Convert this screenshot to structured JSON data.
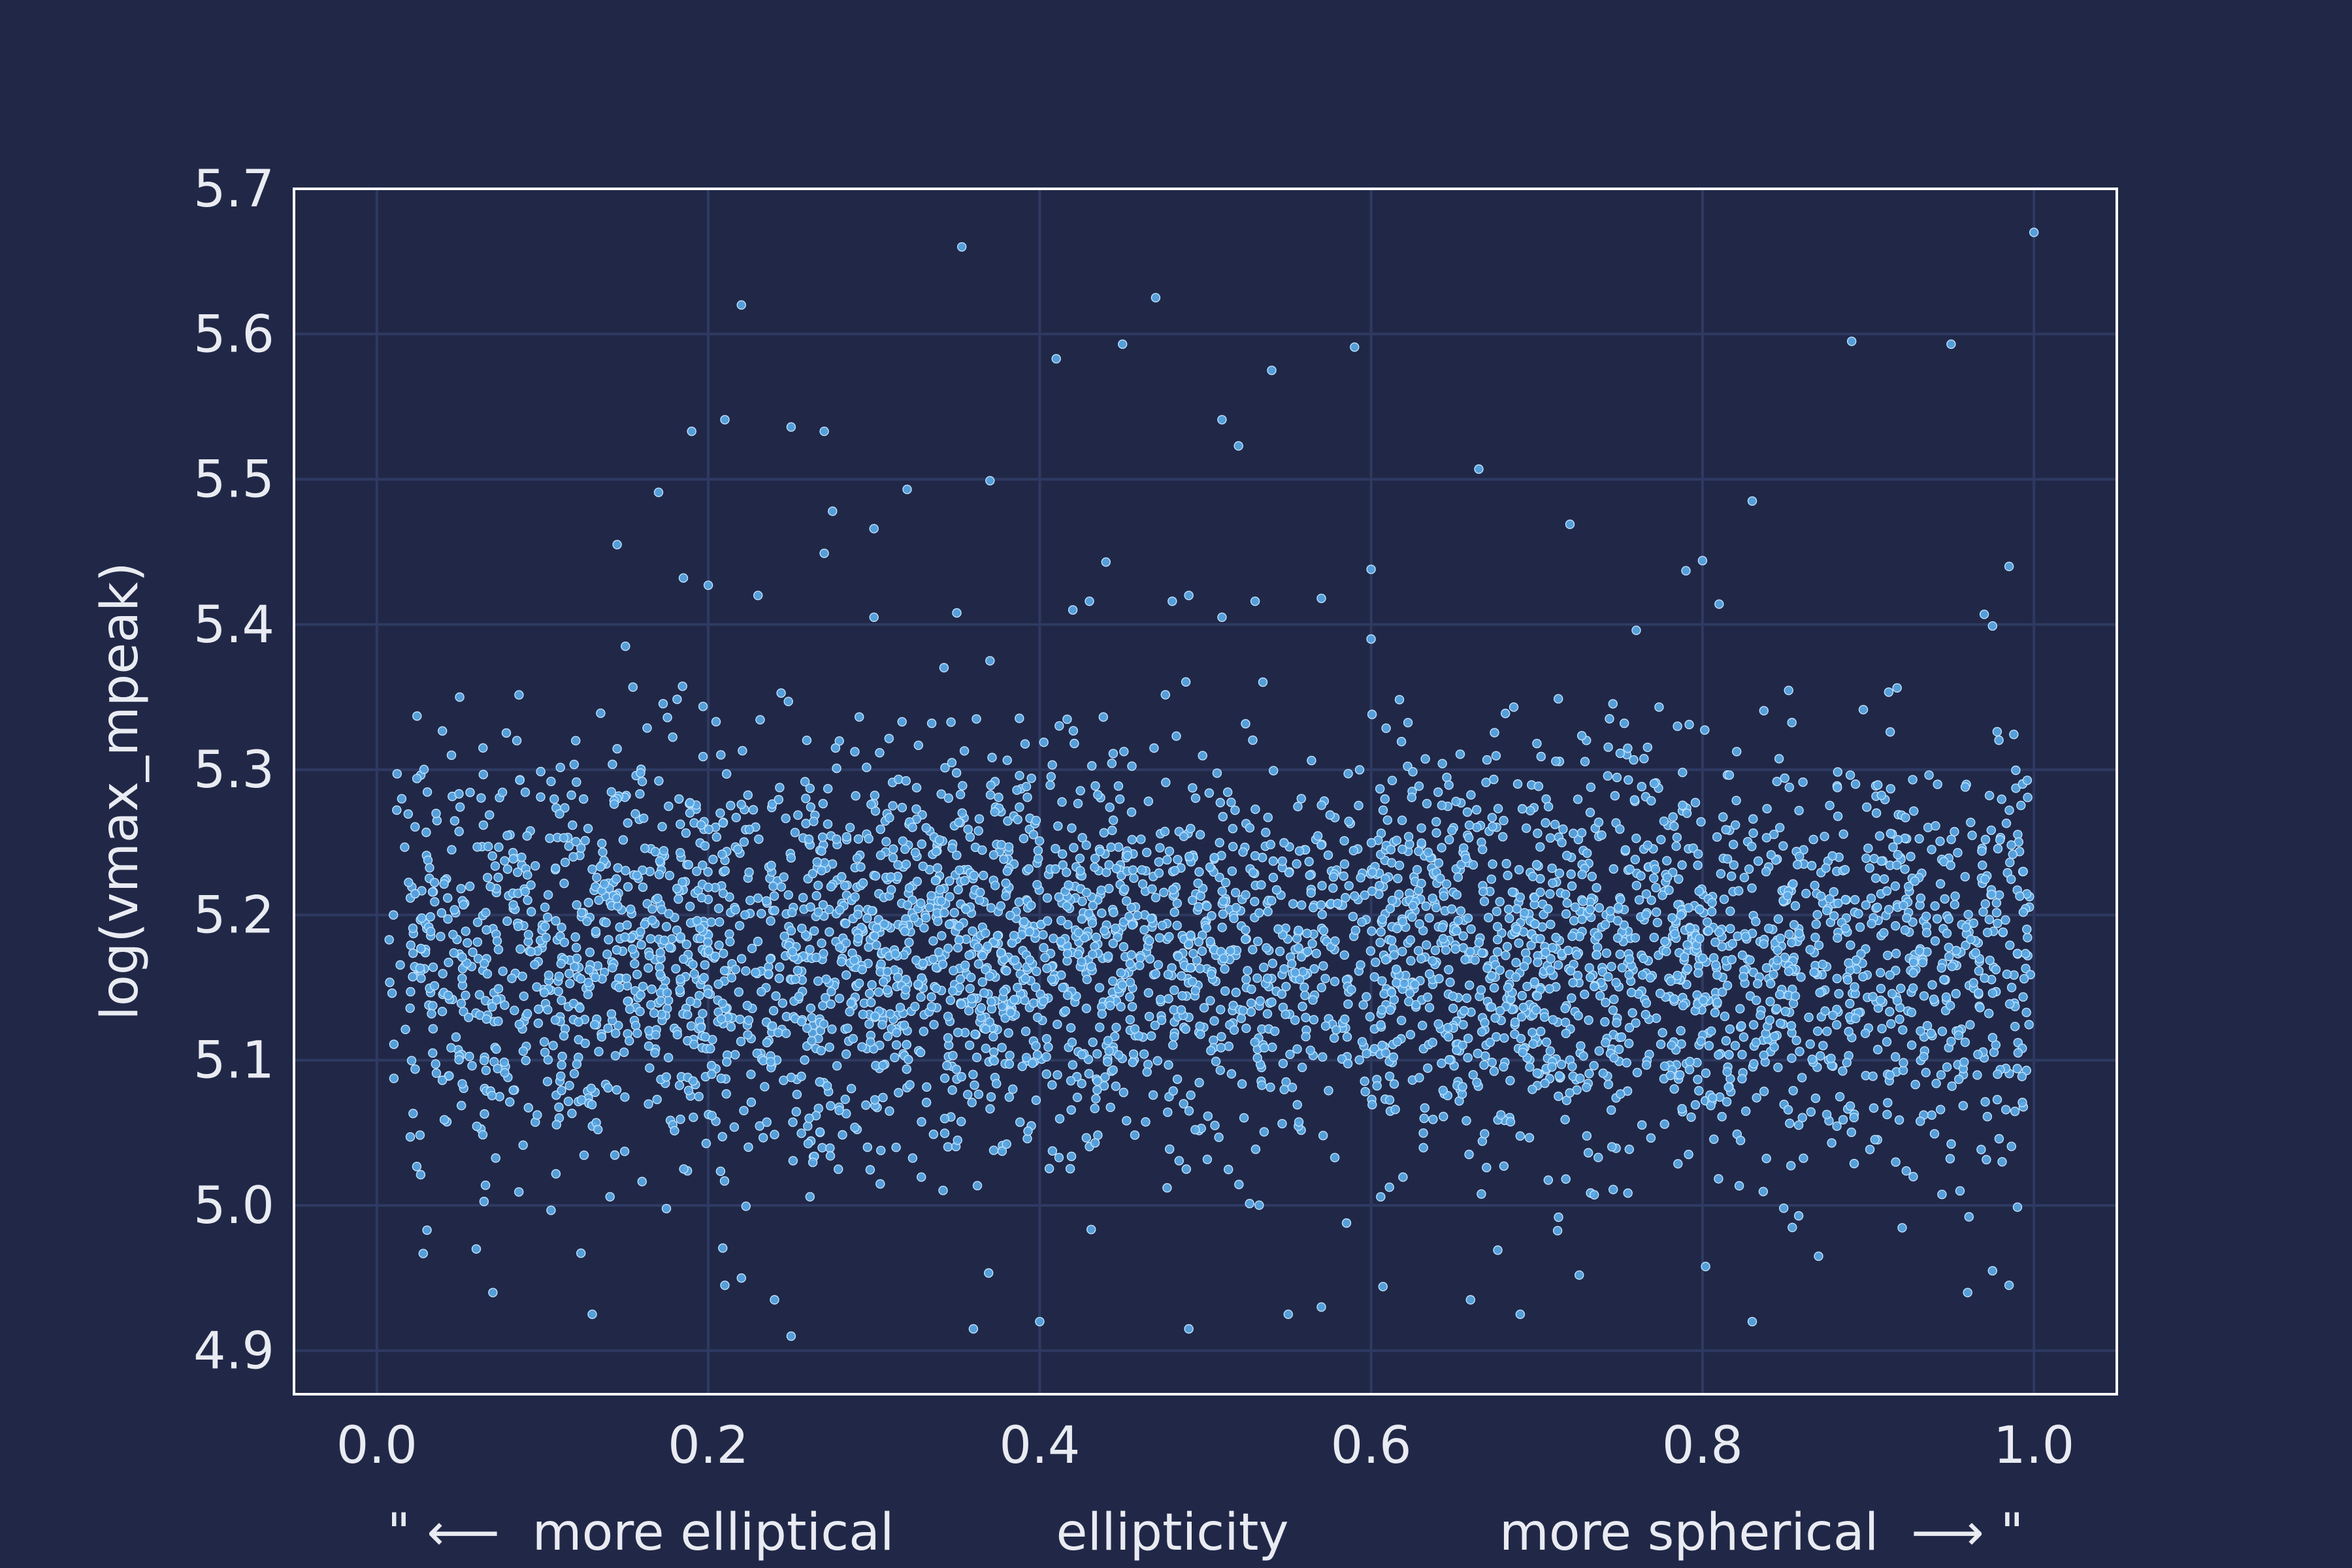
{
  "colors": {
    "background": "#212847",
    "plot_background": "#212847",
    "grid": "#2e3a62",
    "frame": "#ffffff",
    "point_fill": "#5aa8e6",
    "point_edge": "#bfe3ff",
    "text": "#e9ebf2"
  },
  "chart_data": {
    "type": "scatter",
    "title": "",
    "xlabel": "\" ⟵  more elliptical          ellipticity             more spherical  ⟶ \"",
    "ylabel": "log(vmax_mpeak)",
    "xlim": [
      -0.05,
      1.05
    ],
    "ylim": [
      4.87,
      5.7
    ],
    "grid": true,
    "legend": null,
    "x_ticks": [
      0.0,
      0.2,
      0.4,
      0.6,
      0.8,
      1.0
    ],
    "x_tick_labels": [
      "0.0",
      "0.2",
      "0.4",
      "0.6",
      "0.8",
      "1.0"
    ],
    "y_ticks": [
      4.9,
      5.0,
      5.1,
      5.2,
      5.3,
      5.4,
      5.5,
      5.6,
      5.7
    ],
    "y_tick_labels": [
      "4.9",
      "5.0",
      "5.1",
      "5.2",
      "5.3",
      "5.4",
      "5.5",
      "5.6",
      "5.7"
    ],
    "series": [
      {
        "x": [
          0.353,
          1.0,
          0.22,
          0.47,
          0.89,
          0.95,
          0.41,
          0.45,
          0.54,
          0.59,
          0.21,
          0.25,
          0.27,
          0.19,
          0.51,
          0.52,
          0.37,
          0.32,
          0.17,
          0.665,
          0.275,
          0.3,
          0.83,
          0.72,
          0.145,
          0.27,
          0.8,
          0.79,
          0.2,
          0.185,
          0.6,
          0.44,
          0.53,
          0.985,
          0.81,
          0.43,
          0.48,
          0.49,
          0.57,
          0.23,
          0.42,
          0.97,
          0.975,
          0.76,
          0.3,
          0.37,
          0.51,
          0.6,
          0.15,
          0.35,
          0.07,
          0.06,
          0.01,
          0.015,
          0.045,
          0.05,
          0.12,
          0.13,
          0.96,
          0.985,
          0.975,
          0.25,
          0.4,
          0.36,
          0.49,
          0.55,
          0.57,
          0.66,
          0.69,
          0.83,
          0.87,
          0.21,
          0.22,
          0.24
        ],
        "y": [
          5.66,
          5.67,
          5.62,
          5.625,
          5.595,
          5.593,
          5.583,
          5.593,
          5.575,
          5.591,
          5.541,
          5.536,
          5.533,
          5.533,
          5.541,
          5.523,
          5.499,
          5.493,
          5.491,
          5.507,
          5.478,
          5.466,
          5.485,
          5.469,
          5.455,
          5.449,
          5.444,
          5.437,
          5.427,
          5.432,
          5.438,
          5.443,
          5.416,
          5.44,
          5.414,
          5.416,
          5.416,
          5.42,
          5.418,
          5.42,
          5.41,
          5.407,
          5.399,
          5.396,
          5.405,
          5.375,
          5.405,
          5.39,
          5.385,
          5.408,
          4.94,
          4.97,
          5.2,
          5.28,
          5.31,
          5.35,
          5.32,
          4.925,
          4.94,
          4.945,
          4.955,
          4.91,
          4.92,
          4.915,
          4.915,
          4.925,
          4.93,
          4.935,
          4.925,
          4.92,
          4.965,
          4.945,
          4.95,
          4.935
        ],
        "bulk_note_points": "dense cloud centered near y≈5.17, spanning x 0.0–1.0 and y ≈4.95–5.35"
      }
    ]
  }
}
